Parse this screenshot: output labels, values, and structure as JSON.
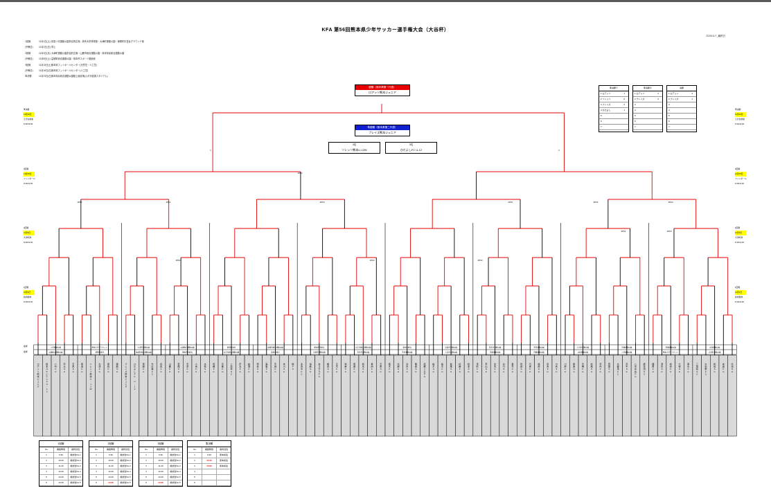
{
  "title": "KFA 第56回熊本県少年サッカー選手権大会（大谷杯）",
  "pubdate": "2025/11/7_最終日",
  "schedule": [
    {
      "round": "1回戦",
      "date": "11月1日(土)",
      "venue": "県営八代運動公園多目的広場・熊本大学体育館・大津町運動公園・菊陽町杉並台グラウンド他"
    },
    {
      "round": "(予備日)",
      "date": "11月2日(日)",
      "venue": "同上"
    },
    {
      "round": "2回戦",
      "date": "11月3日(月)",
      "venue": "大津町運動公園多目的広場・山鹿市総合運動公園・熊本県民総合運動公園"
    },
    {
      "round": "(予備日)",
      "date": "11月8日(土)",
      "venue": "益城町総合運動公園・熊本市スポーツ施設他"
    },
    {
      "round": "3回戦",
      "date": "11月15日(土)",
      "venue": "熊本県フットボールセンター(天然芝・人工芝)"
    },
    {
      "round": "(予備日)",
      "date": "11月16日(日)",
      "venue": "熊本県フットボールセンター(人工芝)"
    },
    {
      "round": "準決勝",
      "date": "11月23日(日)",
      "venue": "熊本県民総合運動公園陸上競技場(えがお健康スタジアム)"
    }
  ],
  "champion": {
    "label": "優勝（熊本県第一代表）",
    "name": "ロアッソ熊本ジュニア"
  },
  "runner_up": {
    "label": "準優勝（熊本県第二代表）",
    "name": "ブレイズ熊本ジュニア"
  },
  "third_places": [
    {
      "label": "3位",
      "name": "ソレッソ熊本U-12W"
    },
    {
      "label": "3位",
      "name": "ひだよしFC U-12"
    }
  ],
  "semi_marks": [
    "1",
    "2"
  ],
  "pk_marks": [
    "2PK0",
    "2PK1",
    "1PK4",
    "2PK3",
    "3PK2",
    "1PK3",
    "2PK3",
    "0PK2",
    "1PK0",
    "0PK1",
    "3PK4",
    "2PK3"
  ],
  "results_tables": [
    {
      "title": "準決勝①",
      "rows": [
        {
          "a": "1",
          "b": "ロアッソ",
          "c": "1"
        },
        {
          "a": "2",
          "b": "ソレッソ",
          "c": "0"
        },
        {
          "a": "3",
          "b": "ブレイズ",
          "c": "2"
        },
        {
          "a": "4",
          "b": "ひだよし",
          "c": "1"
        },
        {
          "a": "5",
          "b": "",
          "c": ""
        },
        {
          "a": "6",
          "b": "",
          "c": ""
        },
        {
          "a": "7",
          "b": "",
          "c": ""
        }
      ]
    },
    {
      "title": "準決勝②",
      "rows": [
        {
          "a": "1",
          "b": "ロアッソ",
          "c": "2"
        },
        {
          "a": "2",
          "b": "ブレイズ",
          "c": "0"
        },
        {
          "a": "3",
          "b": "",
          "c": ""
        },
        {
          "a": "4",
          "b": "",
          "c": ""
        },
        {
          "a": "5",
          "b": "",
          "c": ""
        },
        {
          "a": "6",
          "b": "",
          "c": ""
        },
        {
          "a": "7",
          "b": "",
          "c": ""
        }
      ]
    },
    {
      "title": "決勝",
      "rows": [
        {
          "a": "1",
          "b": "ロアッソ",
          "c": "3"
        },
        {
          "a": "2",
          "b": "ブレイズ",
          "c": "1"
        },
        {
          "a": "3",
          "b": "",
          "c": ""
        },
        {
          "a": "4",
          "b": "",
          "c": ""
        },
        {
          "a": "5",
          "b": "",
          "c": ""
        },
        {
          "a": "6",
          "b": "",
          "c": ""
        },
        {
          "a": "7",
          "b": "",
          "c": ""
        }
      ]
    }
  ],
  "side_labels": {
    "left": [
      {
        "a": "準決勝",
        "b": "11月23日",
        "c": "えがお健康",
        "d": "9:30/13:00"
      },
      {
        "a": "3回戦",
        "b": "11月15日",
        "c": "フットボール",
        "d": "9:30/11:30"
      },
      {
        "a": "2回戦",
        "b": "11月3日",
        "c": "大津町他",
        "d": "9:30/11:30"
      },
      {
        "a": "1回戦",
        "b": "11月1日",
        "c": "県内各地",
        "d": "9:30/11:30"
      }
    ],
    "right": [
      {
        "a": "準決勝",
        "b": "11月23日",
        "c": "えがお健康",
        "d": "9:30/13:00"
      },
      {
        "a": "3回戦",
        "b": "11月15日",
        "c": "フットボール",
        "d": "9:30/11:30"
      },
      {
        "a": "2回戦",
        "b": "11月3日",
        "c": "大津町他",
        "d": "9:30/11:30"
      },
      {
        "a": "1回戦",
        "b": "11月1日",
        "c": "県内各地",
        "d": "9:30/11:30"
      }
    ]
  },
  "venue_row_label": "会場",
  "block_labels": [
    "八代運動公園",
    "熊本大学グラウンド",
    "大津町運動公園",
    "山鹿総合運動公園",
    "菊陽杉並台",
    "益城町総合運動公園",
    "熊本県民総合",
    "合志市総合運動公園",
    "菊池市総合",
    "宇城市運動公園",
    "玉名市運動公園",
    "天草運動公園",
    "人吉市運動公園",
    "荒尾運動公園",
    "阿蘇運動公園",
    "水俣運動公園"
  ],
  "teams": [
    "ロアッソ熊本ジュニア",
    "熊本ユナイテッドU-12",
    "八代FC",
    "宇土SC",
    "玉名FC",
    "菊池FC",
    "ソレッソ熊本U-12W",
    "大津FC",
    "嘉島FC",
    "御船SC",
    "ブレイズ熊本ジュニア",
    "ひだよしFC U-12",
    "菊陽FC",
    "光の森FC",
    "合志FC",
    "山鹿FC",
    "荒尾SC",
    "天草FC",
    "人吉FC",
    "水俣SC",
    "阿蘇FC",
    "高森FC",
    "上天草SC",
    "芦北FC",
    "益城FC",
    "甲佐SC",
    "美里FC",
    "宇城FC",
    "氷川SC",
    "錦FC",
    "多良木FC",
    "湯前SC",
    "あさぎりFC",
    "相良SC",
    "五木FC",
    "球磨FC",
    "南関FC",
    "和水SC",
    "長洲FC",
    "玉東SC",
    "植木FC",
    "北部SC",
    "清水FC",
    "龍田SC",
    "武蔵ヶ丘FC",
    "楡木SC",
    "桜木FC",
    "健軍SC",
    "託麻FC",
    "秋津SC",
    "東町FC",
    "帯山SC",
    "出水FC",
    "白川SC",
    "春竹FC",
    "田迎SC",
    "日吉FC",
    "城南SC",
    "富合FC",
    "力合SC",
    "川尻FC",
    "飽田SC",
    "天明FC",
    "松尾SC",
    "河内FC",
    "西里SC",
    "北部東FC",
    "高平SC",
    "八景水谷FC",
    "麻生田SC",
    "龍南FC",
    "泗水SC",
    "旭志FC",
    "七城SC",
    "菊水FC",
    "三加和SC",
    "大矢野FC",
    "松島SC",
    "本渡FC",
    "牛深SC"
  ],
  "schedule_tables": [
    {
      "title": "1回戦",
      "headers": [
        "No",
        "開始時間",
        "審判割当"
      ],
      "rows": [
        [
          "1",
          "9:30",
          "前試合No.1"
        ],
        [
          "2",
          "10:30",
          "前試合No.2"
        ],
        [
          "3",
          "11:30",
          "前試合No.3"
        ],
        [
          "4",
          "12:30",
          "前試合No.4"
        ],
        [
          "5",
          "13:30",
          "前試合No.5"
        ],
        [
          "6",
          "14:30",
          "前試合No.6"
        ]
      ],
      "highlight": []
    },
    {
      "title": "2回戦",
      "headers": [
        "No",
        "開始時間",
        "審判割当"
      ],
      "rows": [
        [
          "1",
          "9:30",
          "前試合No.1"
        ],
        [
          "2",
          "10:30",
          "前試合No.2"
        ],
        [
          "3",
          "11:30",
          "前試合No.3"
        ],
        [
          "4",
          "12:30",
          "前試合No.4"
        ],
        [
          "5",
          "13:30",
          "前試合No.5"
        ],
        [
          "6",
          "14:30",
          "前試合No.6"
        ]
      ],
      "highlight": [
        5
      ]
    },
    {
      "title": "3回戦",
      "headers": [
        "No",
        "開始時間",
        "審判割当"
      ],
      "rows": [
        [
          "1",
          "9:30",
          "前試合No.1"
        ],
        [
          "2",
          "10:30",
          "前試合No.2"
        ],
        [
          "3",
          "11:30",
          "前試合No.3"
        ],
        [
          "4",
          "12:30",
          "前試合No.4"
        ],
        [
          "5",
          "13:30",
          "前試合No.5"
        ],
        [
          "6",
          "14:30",
          "前試合No.6"
        ]
      ],
      "highlight": [
        5
      ]
    },
    {
      "title": "準決勝",
      "headers": [
        "No",
        "開始時間",
        "審判割当"
      ],
      "rows": [
        [
          "1",
          "9:30",
          "熊本県協"
        ],
        [
          "2",
          "11:00",
          "熊本県協"
        ],
        [
          "3",
          "13:00",
          "熊本県協"
        ],
        [
          "4",
          "",
          ""
        ],
        [
          "5",
          "",
          ""
        ],
        [
          "6",
          "",
          ""
        ]
      ],
      "highlight": [
        1,
        2
      ]
    }
  ],
  "colors": {
    "win": "#e00000",
    "line": "#000000",
    "champion": "#e60000",
    "runner_up": "#1020d0",
    "cell": "#d9d9d9",
    "highlight": "#ffff00"
  }
}
